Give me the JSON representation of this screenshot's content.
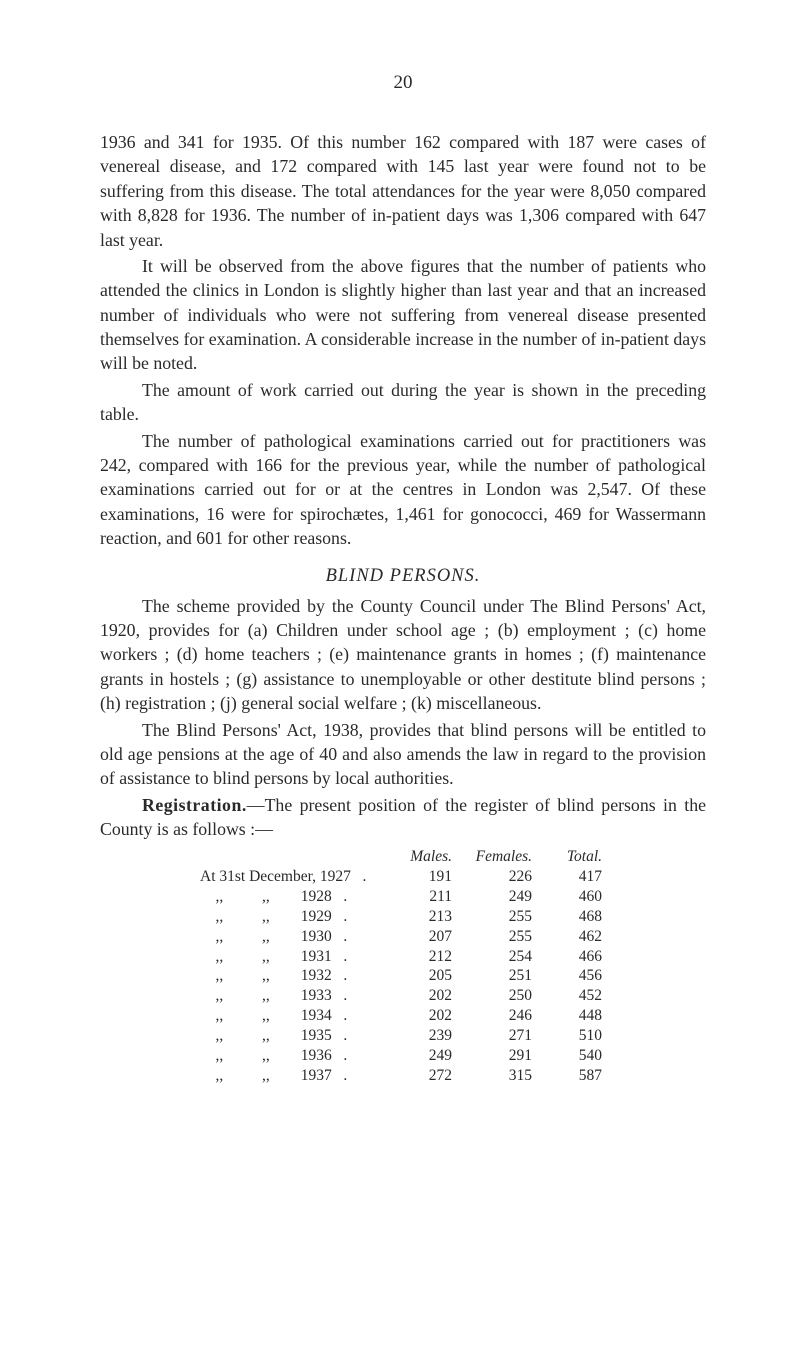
{
  "page_number": "20",
  "paragraphs": {
    "p1": "1936 and 341 for 1935. Of this number 162 compared with 187 were cases of venereal disease, and 172 compared with 145 last year were found not to be suffering from this disease. The total attendances for the year were 8,050 compared with 8,828 for 1936. The number of in-patient days was 1,306 compared with 647 last year.",
    "p2": "It will be observed from the above figures that the number of patients who attended the clinics in London is slightly higher than last year and that an increased number of individuals who were not suffering from venereal disease presented themselves for examination. A considerable increase in the number of in-patient days will be noted.",
    "p3": "The amount of work carried out during the year is shown in the preceding table.",
    "p4": "The number of pathological examinations carried out for practitioners was 242, compared with 166 for the previous year, while the number of pathological examinations carried out for or at the centres in London was 2,547. Of these examinations, 16 were for spirochætes, 1,461 for gonococci, 469 for Wassermann reaction, and 601 for other reasons."
  },
  "blind_section": {
    "title": "BLIND PERSONS.",
    "p5": "The scheme provided by the County Council under The Blind Persons' Act, 1920, provides for (a) Children under school age ; (b) employment ; (c) home workers ; (d) home teachers ; (e) maintenance grants in homes ; (f) maintenance grants in hostels ; (g) assistance to unemployable or other destitute blind persons ; (h) registration ; (j) general social welfare ; (k) miscellaneous.",
    "p6": "The Blind Persons' Act, 1938, provides that blind persons will be entitled to old age pensions at the age of 40 and also amends the law in regard to the provision of assistance to blind persons by local authorities.",
    "reg_label": "Registration.",
    "p7_rest": "—The present position of the register of blind persons in the County is as follows :—"
  },
  "table": {
    "headers": {
      "males": "Males.",
      "females": "Females.",
      "total": "Total."
    },
    "first_label": "At 31st December, 1927",
    "ditto_prefix": "    ,,          ,,        ",
    "rows": [
      {
        "year": "1927",
        "males": "191",
        "females": "226",
        "total": "417"
      },
      {
        "year": "1928",
        "males": "211",
        "females": "249",
        "total": "460"
      },
      {
        "year": "1929",
        "males": "213",
        "females": "255",
        "total": "468"
      },
      {
        "year": "1930",
        "males": "207",
        "females": "255",
        "total": "462"
      },
      {
        "year": "1931",
        "males": "212",
        "females": "254",
        "total": "466"
      },
      {
        "year": "1932",
        "males": "205",
        "females": "251",
        "total": "456"
      },
      {
        "year": "1933",
        "males": "202",
        "females": "250",
        "total": "452"
      },
      {
        "year": "1934",
        "males": "202",
        "females": "246",
        "total": "448"
      },
      {
        "year": "1935",
        "males": "239",
        "females": "271",
        "total": "510"
      },
      {
        "year": "1936",
        "males": "249",
        "females": "291",
        "total": "540"
      },
      {
        "year": "1937",
        "males": "272",
        "females": "315",
        "total": "587"
      }
    ]
  }
}
